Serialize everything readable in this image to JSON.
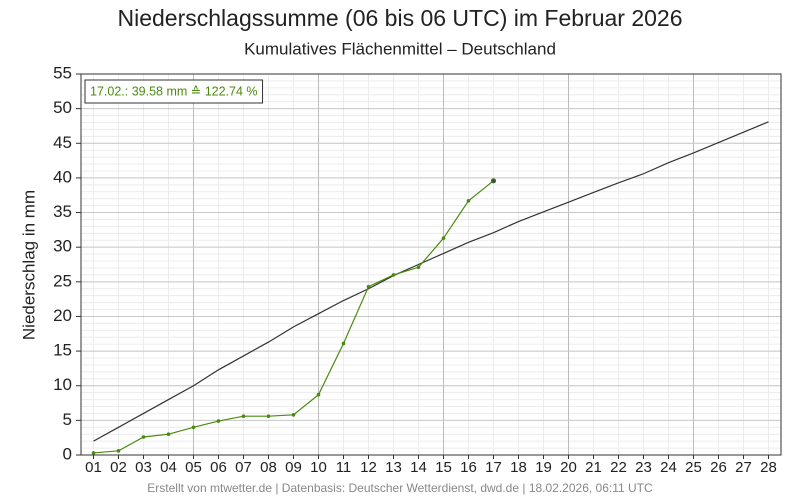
{
  "chart_data": {
    "type": "line",
    "title": "Niederschlagssumme (06 bis 06 UTC) im Februar 2026",
    "subtitle": "Kumulatives Flächenmittel – Deutschland",
    "y_label": "Niederschlag in mm",
    "annotation": "17.02.: 39.58 mm ≙ 122.74 %",
    "footer": "Erstellt von mtwetter.de | Datenbasis: Deutscher Wetterdienst, dwd.de | 18.02.2026, 06:11 UTC",
    "categories": [
      "01",
      "02",
      "03",
      "04",
      "05",
      "06",
      "07",
      "08",
      "09",
      "10",
      "11",
      "12",
      "13",
      "14",
      "15",
      "16",
      "17",
      "18",
      "19",
      "20",
      "21",
      "22",
      "23",
      "24",
      "25",
      "26",
      "27",
      "28"
    ],
    "series": [
      {
        "color": "#333333",
        "values": [
          2.0,
          4.0,
          6.0,
          8.0,
          10.0,
          12.3,
          14.3,
          16.3,
          18.5,
          20.4,
          22.3,
          24.0,
          25.9,
          27.5,
          29.1,
          30.7,
          32.1,
          33.7,
          35.1,
          36.5,
          37.9,
          39.3,
          40.6,
          42.2,
          43.6,
          45.1,
          46.6,
          48.1
        ]
      },
      {
        "color": "#4a8a10",
        "values": [
          0.3,
          0.6,
          2.6,
          3.0,
          4.0,
          4.9,
          5.6,
          5.6,
          5.8,
          8.7,
          16.1,
          24.3,
          26.0,
          27.1,
          31.3,
          36.7,
          39.58,
          null,
          null,
          null,
          null,
          null,
          null,
          null,
          null,
          null,
          null,
          null
        ]
      }
    ],
    "ylim": [
      0,
      55
    ],
    "yticks": [
      0,
      5,
      10,
      15,
      20,
      25,
      30,
      35,
      40,
      45,
      50,
      55
    ],
    "grid": true
  }
}
